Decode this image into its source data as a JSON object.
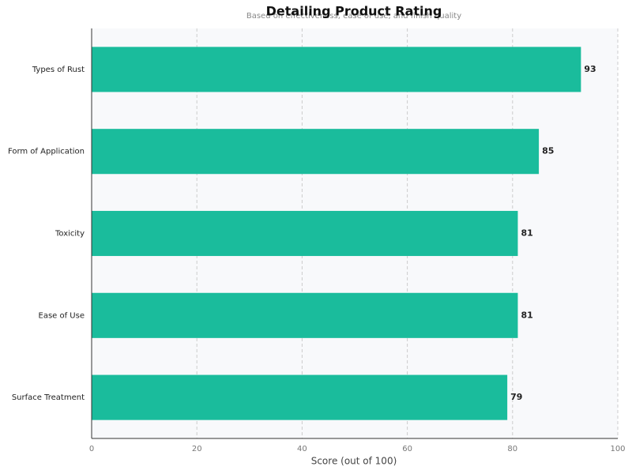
{
  "chart_data": {
    "type": "bar",
    "orientation": "horizontal",
    "title": "Detailing Product Rating",
    "subtitle": "Based on effectiveness, ease of use, and finish quality",
    "xlabel": "Score (out of 100)",
    "categories": [
      "Types of Rust",
      "Form of Application",
      "Toxicity",
      "Ease of Use",
      "Surface Treatment"
    ],
    "values": [
      93,
      85,
      81,
      81,
      79
    ],
    "color": "#1abc9c",
    "xlim": [
      0,
      100
    ],
    "xticks": [
      0,
      20,
      40,
      60,
      80,
      100
    ],
    "grid": true
  }
}
